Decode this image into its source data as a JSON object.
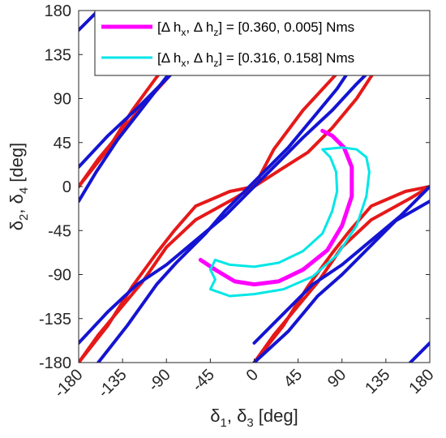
{
  "chart_data": {
    "type": "line",
    "xlim": [
      -180,
      180
    ],
    "ylim": [
      -180,
      180
    ],
    "xticks": [
      -180,
      -135,
      -90,
      -45,
      0,
      45,
      90,
      135,
      180
    ],
    "yticks": [
      -180,
      -135,
      -90,
      -45,
      0,
      45,
      90,
      135,
      180
    ],
    "xtick_labels": [
      "-180",
      "-135",
      "-90",
      "-45",
      "0",
      "45",
      "90",
      "135",
      "180"
    ],
    "ytick_labels": [
      "-180",
      "-135",
      "-90",
      "-45",
      "0",
      "45",
      "90",
      "135",
      "180"
    ],
    "xlabel": {
      "d1": "δ",
      "s1": "1",
      "sep": ", ",
      "d2": "δ",
      "s2": "3",
      "unit": " [deg]"
    },
    "ylabel": {
      "d1": "δ",
      "s1": "2",
      "sep": ", ",
      "d2": "δ",
      "s2": "4",
      "unit": " [deg]"
    },
    "grid": false,
    "legend_position": "top-right",
    "colors": {
      "red_curves": "#e61919",
      "blue_curves": "#1414d2",
      "magenta": "#ff00ff",
      "cyan": "#00e6e6",
      "axis": "#262626"
    },
    "legend": [
      {
        "color": "#ff00ff",
        "pre": "[Δ h",
        "s1": "x",
        "mid": ", Δ h",
        "s2": "z",
        "post": "] = [0.360, 0.005] Nms"
      },
      {
        "color": "#00e6e6",
        "pre": "[Δ h",
        "s1": "x",
        "mid": ", Δ h",
        "s2": "z",
        "post": "] = [0.316, 0.158] Nms"
      }
    ],
    "series": [
      {
        "color": "#e61919",
        "points": [
          [
            -180,
            0
          ],
          [
            -150,
            38
          ],
          [
            -125,
            78
          ],
          [
            -100,
            112
          ],
          [
            -82,
            135
          ],
          [
            -65,
            160
          ],
          [
            -48,
            180
          ]
        ]
      },
      {
        "color": "#e61919",
        "points": [
          [
            -180,
            0
          ],
          [
            -160,
            28
          ],
          [
            -140,
            52
          ],
          [
            -115,
            82
          ],
          [
            -88,
            112
          ],
          [
            -62,
            145
          ],
          [
            -45,
            172
          ],
          [
            -40,
            180
          ]
        ]
      },
      {
        "color": "#e61919",
        "points": [
          [
            -180,
            -180
          ],
          [
            -150,
            -142
          ],
          [
            -125,
            -102
          ],
          [
            -100,
            -68
          ],
          [
            -82,
            -45
          ],
          [
            -60,
            -20
          ],
          [
            -25,
            -5
          ],
          [
            0,
            0
          ]
        ]
      },
      {
        "color": "#e61919",
        "points": [
          [
            -180,
            -180
          ],
          [
            -160,
            -152
          ],
          [
            -140,
            -128
          ],
          [
            -115,
            -98
          ],
          [
            -90,
            -62
          ],
          [
            -60,
            -34
          ],
          [
            -20,
            -12
          ],
          [
            0,
            0
          ]
        ]
      },
      {
        "color": "#e61919",
        "points": [
          [
            0,
            0
          ],
          [
            20,
            38
          ],
          [
            50,
            78
          ],
          [
            75,
            105
          ],
          [
            98,
            130
          ],
          [
            120,
            158
          ],
          [
            140,
            180
          ]
        ]
      },
      {
        "color": "#e61919",
        "points": [
          [
            0,
            0
          ],
          [
            28,
            18
          ],
          [
            55,
            35
          ],
          [
            80,
            60
          ],
          [
            105,
            90
          ],
          [
            130,
            128
          ],
          [
            145,
            158
          ],
          [
            155,
            180
          ]
        ]
      },
      {
        "color": "#e61919",
        "points": [
          [
            0,
            -180
          ],
          [
            30,
            -142
          ],
          [
            55,
            -102
          ],
          [
            80,
            -68
          ],
          [
            98,
            -45
          ],
          [
            120,
            -20
          ],
          [
            155,
            -5
          ],
          [
            180,
            0
          ]
        ]
      },
      {
        "color": "#e61919",
        "points": [
          [
            0,
            -180
          ],
          [
            20,
            -152
          ],
          [
            40,
            -128
          ],
          [
            65,
            -98
          ],
          [
            90,
            -62
          ],
          [
            120,
            -34
          ],
          [
            160,
            -12
          ],
          [
            180,
            0
          ]
        ]
      },
      {
        "color": "#1414d2",
        "points": [
          [
            -180,
            20
          ],
          [
            -150,
            52
          ],
          [
            -120,
            80
          ],
          [
            -100,
            100
          ],
          [
            -80,
            120
          ],
          [
            -55,
            150
          ],
          [
            -30,
            180
          ]
        ]
      },
      {
        "color": "#1414d2",
        "points": [
          [
            -180,
            -15
          ],
          [
            -162,
            15
          ],
          [
            -140,
            48
          ],
          [
            -115,
            80
          ],
          [
            -90,
            112
          ],
          [
            -70,
            140
          ],
          [
            -55,
            160
          ],
          [
            -42,
            180
          ]
        ]
      },
      {
        "color": "#1414d2",
        "points": [
          [
            -180,
            160
          ],
          [
            -172,
            168
          ],
          [
            -160,
            180
          ]
        ]
      },
      {
        "color": "#1414d2",
        "points": [
          [
            -180,
            -160
          ],
          [
            -150,
            -128
          ],
          [
            -120,
            -100
          ],
          [
            -90,
            -80
          ],
          [
            -60,
            -55
          ],
          [
            -30,
            -30
          ],
          [
            0,
            0
          ],
          [
            25,
            25
          ],
          [
            50,
            50
          ],
          [
            80,
            78
          ],
          [
            105,
            105
          ],
          [
            130,
            130
          ],
          [
            155,
            155
          ],
          [
            180,
            180
          ]
        ]
      },
      {
        "color": "#1414d2",
        "points": [
          [
            -160,
            -180
          ],
          [
            -130,
            -142
          ],
          [
            -100,
            -100
          ],
          [
            -80,
            -78
          ],
          [
            -50,
            -48
          ],
          [
            -30,
            -25
          ],
          [
            -10,
            -5
          ],
          [
            10,
            15
          ],
          [
            35,
            40
          ],
          [
            60,
            70
          ],
          [
            85,
            100
          ],
          [
            105,
            130
          ],
          [
            125,
            160
          ],
          [
            140,
            180
          ]
        ]
      },
      {
        "color": "#1414d2",
        "points": [
          [
            0,
            -160
          ],
          [
            30,
            -130
          ],
          [
            60,
            -100
          ],
          [
            90,
            -80
          ],
          [
            120,
            -55
          ],
          [
            150,
            -30
          ],
          [
            180,
            0
          ]
        ]
      },
      {
        "color": "#1414d2",
        "points": [
          [
            0,
            -180
          ],
          [
            35,
            -148
          ],
          [
            65,
            -112
          ],
          [
            90,
            -90
          ],
          [
            115,
            -65
          ],
          [
            145,
            -35
          ],
          [
            180,
            -15
          ]
        ]
      },
      {
        "color": "#1414d2",
        "points": [
          [
            160,
            -180
          ],
          [
            170,
            -170
          ],
          [
            180,
            -160
          ]
        ]
      },
      {
        "color": "#ff00ff",
        "width": 5,
        "points": [
          [
            -55,
            -75
          ],
          [
            -40,
            -85
          ],
          [
            -20,
            -97
          ],
          [
            0,
            -100
          ],
          [
            25,
            -97
          ],
          [
            50,
            -85
          ],
          [
            75,
            -65
          ],
          [
            90,
            -40
          ],
          [
            100,
            -10
          ],
          [
            100,
            20
          ],
          [
            92,
            40
          ],
          [
            80,
            52
          ],
          [
            70,
            57
          ]
        ]
      },
      {
        "color": "#00e6e6",
        "width": 3,
        "points": [
          [
            -40,
            -75
          ],
          [
            -25,
            -80
          ],
          [
            0,
            -82
          ],
          [
            25,
            -78
          ],
          [
            50,
            -66
          ],
          [
            70,
            -48
          ],
          [
            80,
            -25
          ],
          [
            85,
            -5
          ],
          [
            84,
            15
          ],
          [
            78,
            30
          ],
          [
            70,
            38
          ],
          [
            90,
            40
          ],
          [
            105,
            38
          ],
          [
            115,
            30
          ],
          [
            118,
            15
          ],
          [
            115,
            -10
          ],
          [
            105,
            -40
          ],
          [
            85,
            -70
          ],
          [
            60,
            -92
          ],
          [
            30,
            -105
          ],
          [
            0,
            -110
          ],
          [
            -25,
            -112
          ],
          [
            -45,
            -105
          ],
          [
            -40,
            -95
          ],
          [
            -45,
            -85
          ],
          [
            -40,
            -75
          ]
        ]
      }
    ]
  }
}
